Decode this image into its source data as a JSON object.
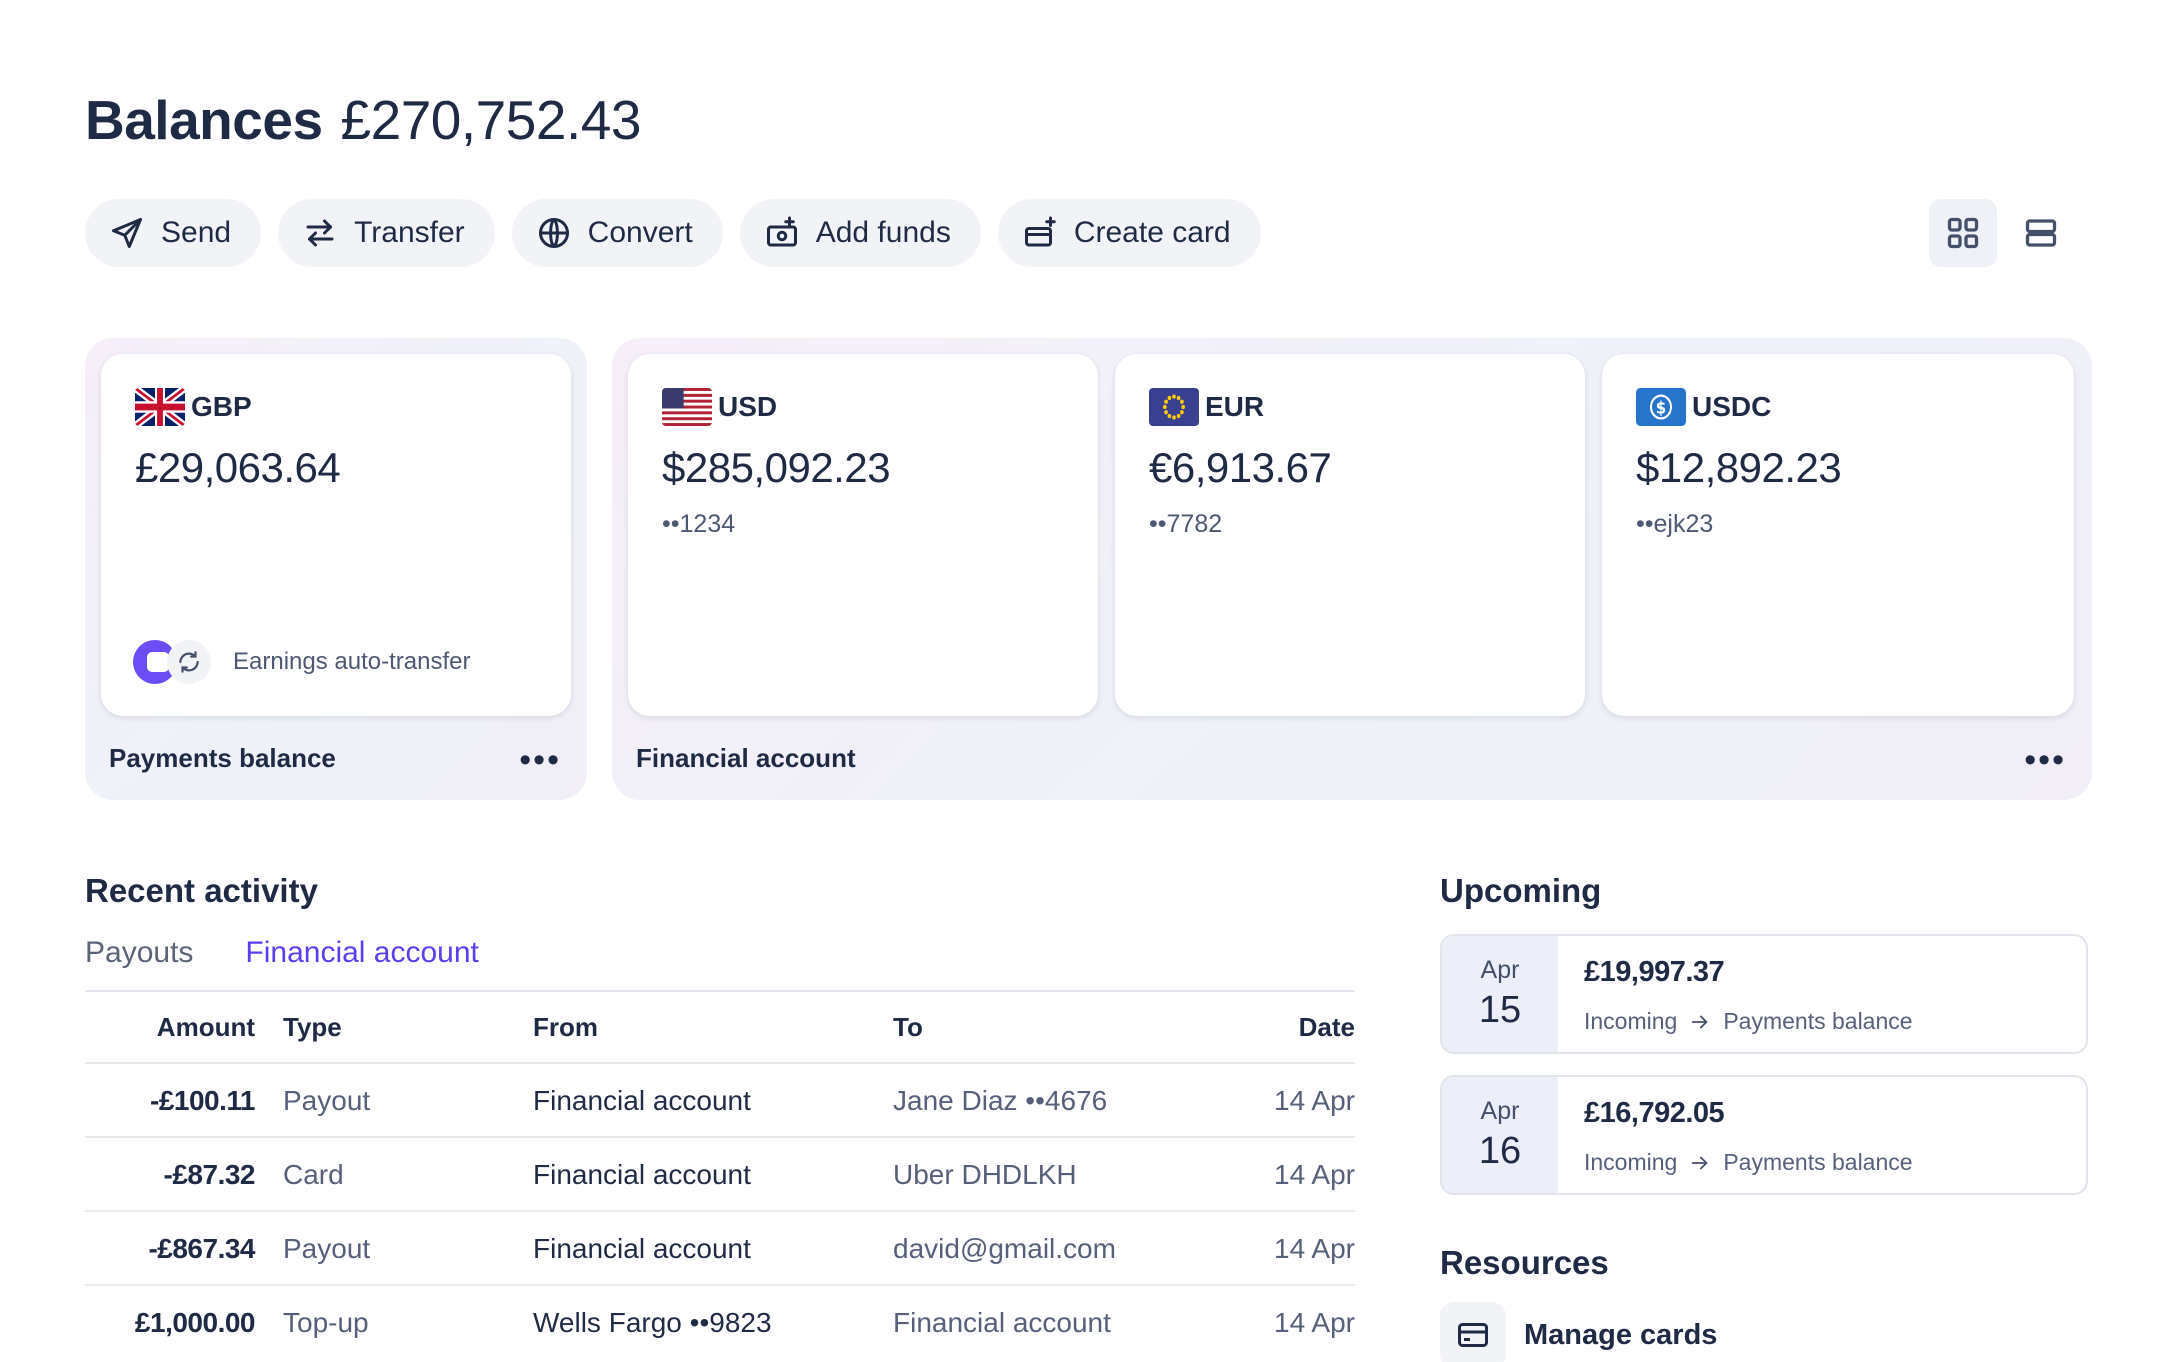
{
  "header": {
    "title": "Balances",
    "total": "£270,752.43"
  },
  "actions": [
    {
      "label": "Send",
      "icon": "send-icon"
    },
    {
      "label": "Transfer",
      "icon": "transfer-icon"
    },
    {
      "label": "Convert",
      "icon": "globe-icon"
    },
    {
      "label": "Add funds",
      "icon": "add-funds-icon"
    },
    {
      "label": "Create card",
      "icon": "create-card-icon"
    }
  ],
  "view_toggle": {
    "grid_icon": "grid-view-icon",
    "list_icon": "list-view-icon",
    "active": "grid"
  },
  "payments_balance": {
    "label": "Payments balance",
    "more": "•••",
    "card": {
      "currency": "GBP",
      "flag": "uk-flag-icon",
      "amount": "£29,063.64",
      "auto_transfer": "Earnings auto-transfer"
    }
  },
  "financial_account": {
    "label": "Financial account",
    "more": "•••",
    "cards": [
      {
        "currency": "USD",
        "flag": "us-flag-icon",
        "amount": "$285,092.23",
        "account": "••1234"
      },
      {
        "currency": "EUR",
        "flag": "eu-flag-icon",
        "amount": "€6,913.67",
        "account": "••7782"
      },
      {
        "currency": "USDC",
        "flag": "usdc-icon",
        "amount": "$12,892.23",
        "account": "••ejk23"
      }
    ]
  },
  "recent_activity": {
    "title": "Recent activity",
    "tabs": [
      {
        "label": "Payouts",
        "active": false
      },
      {
        "label": "Financial account",
        "active": true
      }
    ],
    "columns": {
      "amount": "Amount",
      "type": "Type",
      "from": "From",
      "to": "To",
      "date": "Date"
    },
    "rows": [
      {
        "amount": "-£100.11",
        "type": "Payout",
        "from": "Financial account",
        "to": "Jane Diaz ••4676",
        "date": "14 Apr"
      },
      {
        "amount": "-£87.32",
        "type": "Card",
        "from": "Financial account",
        "to": "Uber DHDLKH",
        "date": "14 Apr"
      },
      {
        "amount": "-£867.34",
        "type": "Payout",
        "from": "Financial account",
        "to": "david@gmail.com",
        "date": "14 Apr"
      },
      {
        "amount": "£1,000.00",
        "type": "Top-up",
        "from": "Wells Fargo ••9823",
        "to": "Financial account",
        "date": "14 Apr"
      }
    ]
  },
  "upcoming": {
    "title": "Upcoming",
    "items": [
      {
        "month": "Apr",
        "day": "15",
        "amount": "£19,997.37",
        "direction": "Incoming",
        "destination": "Payments balance"
      },
      {
        "month": "Apr",
        "day": "16",
        "amount": "£16,792.05",
        "direction": "Incoming",
        "destination": "Payments balance"
      }
    ]
  },
  "resources": {
    "title": "Resources",
    "items": [
      {
        "label": "Manage cards",
        "icon": "card-icon"
      }
    ]
  }
}
